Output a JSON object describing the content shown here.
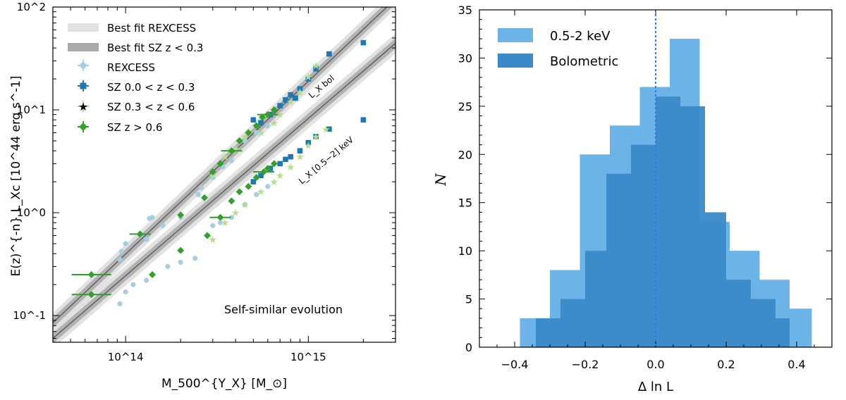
{
  "chart_data": [
    {
      "type": "scatter",
      "xscale": "log",
      "yscale": "log",
      "xlim": [
        40000000000000,
        3000000000000000
      ],
      "ylim": [
        0.055,
        100
      ],
      "xlabel": "M_500^{Y_X} [M_⊙]",
      "ylabel": "E(z)^{-n} L_Xc [10^44 erg s^-1]",
      "x_ticks": [
        "10^14",
        "10^15"
      ],
      "y_ticks": [
        "10^-1",
        "10^0",
        "10^1",
        "10^2"
      ],
      "annotation": "Self-similar evolution",
      "line_labels": [
        "L_X bol",
        "L_X [0.5−2] keV"
      ],
      "legend": [
        {
          "label": "Best fit REXCESS",
          "color": "#dcdcdc",
          "kind": "band"
        },
        {
          "label": "Best fit SZ z < 0.3",
          "color": "#a9a9a9",
          "kind": "band"
        },
        {
          "label": "REXCESS",
          "color": "#a6cee3",
          "kind": "circle"
        },
        {
          "label": "SZ 0.0 < z < 0.3",
          "color": "#1f78b4",
          "kind": "square"
        },
        {
          "label": "SZ 0.3 < z < 0.6",
          "color": "#b2df8a",
          "kind": "star"
        },
        {
          "label": "SZ z > 0.6",
          "color": "#33a02c",
          "kind": "diamond"
        }
      ],
      "fits": [
        {
          "name": "bol",
          "x0": 40000000000000,
          "y0": 0.085,
          "slope": 1.68
        },
        {
          "name": "soft",
          "x0": 40000000000000,
          "y0": 0.06,
          "slope": 1.53
        }
      ],
      "series": [
        {
          "name": "REXCESS",
          "marker": "circle",
          "color": "#a6cee3",
          "points": [
            [
              93000000000000,
              0.35
            ],
            [
              95000000000000,
              0.42
            ],
            [
              100000000000000,
              0.5
            ],
            [
              120000000000000,
              0.6
            ],
            [
              130000000000000,
              0.55
            ],
            [
              135000000000000,
              0.88
            ],
            [
              140000000000000,
              0.9
            ],
            [
              160000000000000,
              0.75
            ],
            [
              200000000000000,
              0.9
            ],
            [
              250000000000000,
              1.5
            ],
            [
              260000000000000,
              1.75
            ],
            [
              300000000000000,
              2.2
            ],
            [
              340000000000000,
              2.8
            ],
            [
              380000000000000,
              3.2
            ],
            [
              450000000000000,
              5.0
            ],
            [
              520000000000000,
              6.0
            ],
            [
              600000000000000,
              7.0
            ],
            [
              93000000000000,
              0.13
            ],
            [
              100000000000000,
              0.17
            ],
            [
              110000000000000,
              0.2
            ],
            [
              130000000000000,
              0.22
            ],
            [
              140000000000000,
              0.25
            ],
            [
              170000000000000,
              0.3
            ],
            [
              200000000000000,
              0.33
            ],
            [
              240000000000000,
              0.36
            ],
            [
              300000000000000,
              0.75
            ],
            [
              330000000000000,
              0.8
            ],
            [
              380000000000000,
              0.9
            ],
            [
              450000000000000,
              1.2
            ],
            [
              520000000000000,
              1.5
            ],
            [
              600000000000000,
              1.8
            ]
          ]
        },
        {
          "name": "SZ 0.0 < z < 0.3",
          "marker": "square",
          "color": "#1f78b4",
          "points": [
            [
              500000000000000,
              8.0
            ],
            [
              550000000000000,
              7.5
            ],
            [
              620000000000000,
              9.0
            ],
            [
              700000000000000,
              11.0
            ],
            [
              750000000000000,
              12.5
            ],
            [
              800000000000000,
              14.0
            ],
            [
              850000000000000,
              13.0
            ],
            [
              900000000000000,
              16.0
            ],
            [
              1000000000000000,
              20.0
            ],
            [
              1100000000000000,
              25.0
            ],
            [
              1300000000000000,
              35.0
            ],
            [
              2000000000000000,
              45.0
            ],
            [
              500000000000000,
              2.0
            ],
            [
              550000000000000,
              2.3
            ],
            [
              620000000000000,
              2.7
            ],
            [
              700000000000000,
              3.0
            ],
            [
              750000000000000,
              3.3
            ],
            [
              800000000000000,
              3.5
            ],
            [
              900000000000000,
              4.0
            ],
            [
              1000000000000000,
              4.8
            ],
            [
              1100000000000000,
              5.5
            ],
            [
              1300000000000000,
              6.5
            ],
            [
              2000000000000000,
              8.0
            ]
          ]
        },
        {
          "name": "SZ 0.3 < z < 0.6",
          "marker": "star",
          "color": "#b2df8a",
          "points": [
            [
              300000000000000,
              2.3
            ],
            [
              350000000000000,
              3.5
            ],
            [
              400000000000000,
              4.2
            ],
            [
              450000000000000,
              5.5
            ],
            [
              550000000000000,
              6.0
            ],
            [
              650000000000000,
              7.5
            ],
            [
              700000000000000,
              9.0
            ],
            [
              800000000000000,
              12.0
            ],
            [
              900000000000000,
              15.0
            ],
            [
              1000000000000000,
              21.0
            ],
            [
              1100000000000000,
              27.0
            ],
            [
              300000000000000,
              0.55
            ],
            [
              350000000000000,
              0.8
            ],
            [
              400000000000000,
              1.0
            ],
            [
              450000000000000,
              1.2
            ],
            [
              550000000000000,
              1.6
            ],
            [
              650000000000000,
              2.0
            ],
            [
              700000000000000,
              2.3
            ],
            [
              800000000000000,
              2.8
            ],
            [
              900000000000000,
              3.5
            ],
            [
              1000000000000000,
              4.5
            ],
            [
              1100000000000000,
              5.5
            ],
            [
              1250000000000000,
              6.5
            ]
          ]
        },
        {
          "name": "SZ z > 0.6",
          "marker": "diamond",
          "color": "#33a02c",
          "points": [
            [
              65000000000000,
              0.25
            ],
            [
              65000000000000,
              0.16
            ],
            [
              120000000000000,
              0.62
            ],
            [
              200000000000000,
              0.95
            ],
            [
              270000000000000,
              1.4
            ],
            [
              300000000000000,
              2.5
            ],
            [
              330000000000000,
              3.0
            ],
            [
              380000000000000,
              4.0
            ],
            [
              420000000000000,
              5.0
            ],
            [
              470000000000000,
              6.0
            ],
            [
              520000000000000,
              7.0
            ],
            [
              560000000000000,
              8.5
            ],
            [
              600000000000000,
              9.0
            ],
            [
              650000000000000,
              10.0
            ],
            [
              140000000000000,
              0.25
            ],
            [
              200000000000000,
              0.43
            ],
            [
              280000000000000,
              0.6
            ],
            [
              330000000000000,
              0.9
            ],
            [
              380000000000000,
              1.3
            ],
            [
              420000000000000,
              1.6
            ],
            [
              470000000000000,
              1.8
            ],
            [
              520000000000000,
              2.2
            ],
            [
              570000000000000,
              2.5
            ],
            [
              600000000000000,
              2.7
            ],
            [
              650000000000000,
              3.0
            ]
          ]
        }
      ]
    },
    {
      "type": "bar",
      "subtype": "histogram",
      "xlim": [
        -0.5,
        0.5
      ],
      "ylim": [
        0,
        35
      ],
      "xlabel": "Δ ln L",
      "ylabel": "N",
      "x_ticks": [
        "−0.4",
        "−0.2",
        "0.0",
        "0.2",
        "0.4"
      ],
      "y_ticks": [
        "0",
        "5",
        "10",
        "15",
        "20",
        "25",
        "30",
        "35"
      ],
      "vline_x": 0.0,
      "series": [
        {
          "name": "0.5-2 keV",
          "color": "#6cb4e8",
          "bin_edges": [
            -0.385,
            -0.3,
            -0.215,
            -0.13,
            -0.045,
            0.04,
            0.125,
            0.21,
            0.295,
            0.38,
            0.443
          ],
          "counts": [
            3,
            8,
            20,
            23,
            27,
            32,
            13,
            10,
            7,
            4
          ]
        },
        {
          "name": "Bolometric",
          "color": "#3a8ac9",
          "bin_edges": [
            -0.34,
            -0.27,
            -0.2,
            -0.14,
            -0.07,
            0.0,
            0.07,
            0.14,
            0.2,
            0.27,
            0.34,
            0.38
          ],
          "counts": [
            3,
            5,
            10,
            18,
            21,
            26,
            25,
            14,
            7,
            5,
            3
          ]
        }
      ]
    }
  ]
}
